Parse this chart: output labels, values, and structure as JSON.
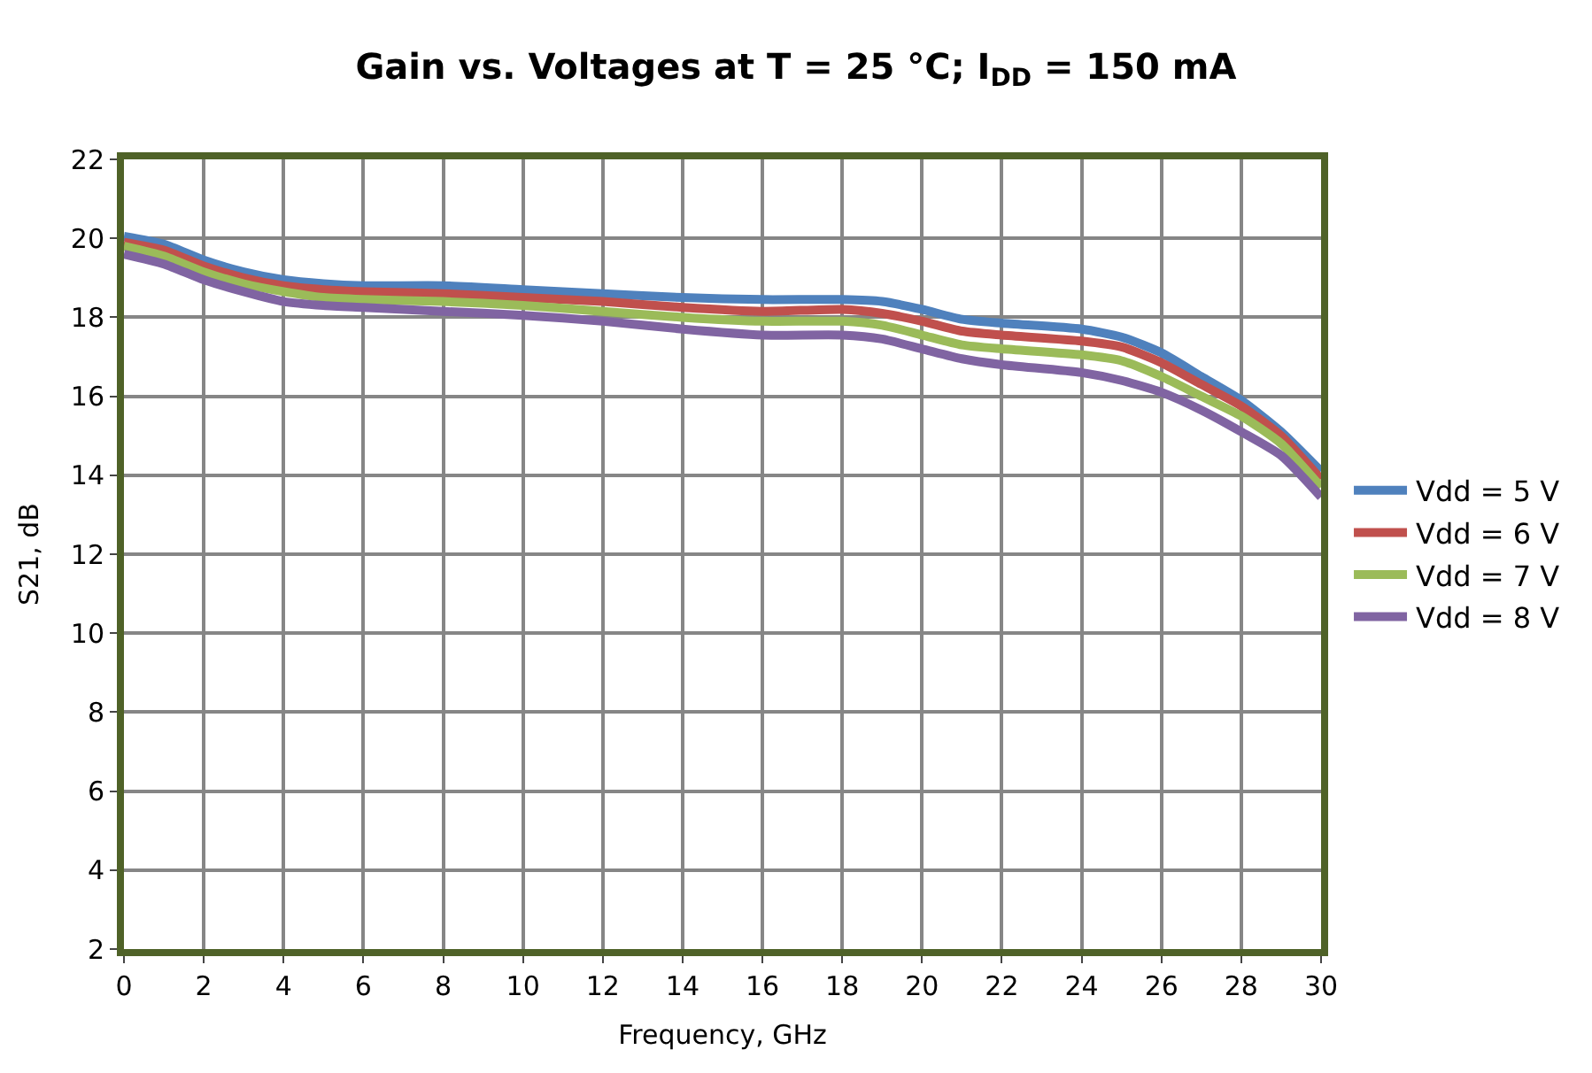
{
  "chart_data": {
    "type": "line",
    "title": "Gain vs. Voltages at T = 25 °C; I$_{DD}$ = 150 mA",
    "xlabel": "Frequency, GHz",
    "ylabel": "S21, dB",
    "x": [
      0,
      1,
      2,
      3,
      4,
      5,
      6,
      8,
      10,
      12,
      14,
      16,
      18,
      19,
      20,
      21,
      22,
      24,
      25,
      26,
      27,
      28,
      29,
      30
    ],
    "series": [
      {
        "name": "Vdd = 5 V",
        "color": "#4f81bd",
        "values": [
          20.05,
          19.85,
          19.45,
          19.15,
          18.95,
          18.85,
          18.8,
          18.8,
          18.7,
          18.6,
          18.5,
          18.45,
          18.45,
          18.4,
          18.2,
          17.95,
          17.85,
          17.7,
          17.5,
          17.1,
          16.5,
          15.9,
          15.1,
          14.1
        ]
      },
      {
        "name": "Vdd = 6 V",
        "color": "#c0504d",
        "values": [
          19.9,
          19.7,
          19.3,
          19.0,
          18.8,
          18.7,
          18.65,
          18.6,
          18.5,
          18.4,
          18.25,
          18.15,
          18.2,
          18.1,
          17.9,
          17.65,
          17.55,
          17.4,
          17.25,
          16.85,
          16.3,
          15.75,
          15.0,
          13.9
        ]
      },
      {
        "name": "Vdd = 7 V",
        "color": "#9bbb59",
        "values": [
          19.8,
          19.55,
          19.15,
          18.85,
          18.65,
          18.5,
          18.45,
          18.4,
          18.3,
          18.15,
          18.0,
          17.9,
          17.9,
          17.8,
          17.55,
          17.3,
          17.2,
          17.05,
          16.9,
          16.5,
          16.0,
          15.5,
          14.8,
          13.7
        ]
      },
      {
        "name": "Vdd = 8 V",
        "color": "#8064a2",
        "values": [
          19.6,
          19.35,
          18.95,
          18.65,
          18.4,
          18.3,
          18.25,
          18.15,
          18.05,
          17.9,
          17.7,
          17.55,
          17.55,
          17.45,
          17.2,
          16.95,
          16.8,
          16.6,
          16.4,
          16.1,
          15.65,
          15.1,
          14.5,
          13.45
        ]
      }
    ],
    "xlim": [
      0,
      30
    ],
    "xticks": [
      0,
      2,
      4,
      6,
      8,
      10,
      12,
      14,
      16,
      18,
      20,
      22,
      24,
      26,
      28,
      30
    ],
    "ylim": [
      2,
      22
    ],
    "yticks": [
      2,
      4,
      6,
      8,
      10,
      12,
      14,
      16,
      18,
      20,
      22
    ],
    "grid": true,
    "legend": "right",
    "marker": "none",
    "line_style": "solid"
  }
}
